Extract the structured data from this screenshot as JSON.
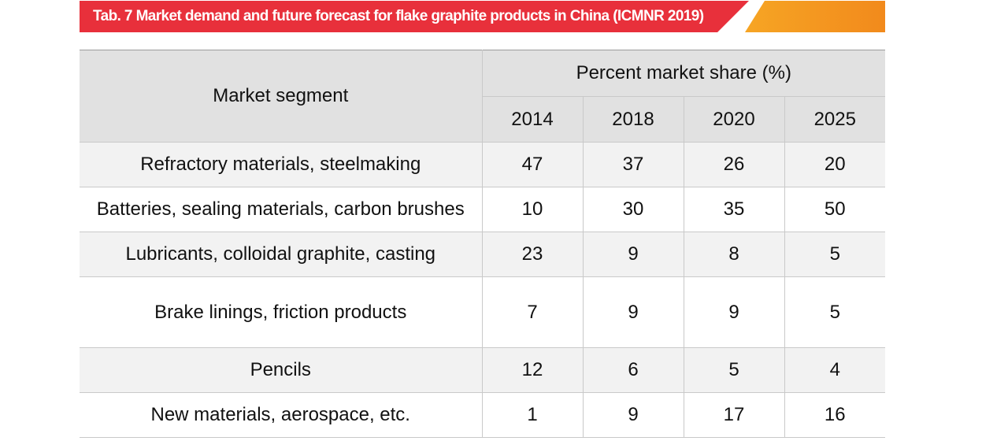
{
  "banner": {
    "title": "Tab. 7    Market demand and future forecast for flake graphite products in China (ICMNR 2019)"
  },
  "table": {
    "segment_header": "Market segment",
    "share_header": "Percent market share (%)",
    "years": [
      "2014",
      "2018",
      "2020",
      "2025"
    ],
    "rows": [
      {
        "segment": "Refractory materials, steelmaking",
        "values": [
          "47",
          "37",
          "26",
          "20"
        ]
      },
      {
        "segment": "Batteries, sealing materials, carbon brushes",
        "values": [
          "10",
          "30",
          "35",
          "50"
        ]
      },
      {
        "segment": "Lubricants, colloidal graphite, casting",
        "values": [
          "23",
          "9",
          "8",
          "5"
        ]
      },
      {
        "segment": "Brake linings, friction products",
        "values": [
          "7",
          "9",
          "9",
          "5"
        ]
      },
      {
        "segment": "Pencils",
        "values": [
          "12",
          "6",
          "5",
          "4"
        ]
      },
      {
        "segment": "New materials, aerospace, etc.",
        "values": [
          "1",
          "9",
          "17",
          "16"
        ]
      }
    ]
  },
  "colors": {
    "banner_red": "#e8303b",
    "banner_orange": "#f6a524",
    "header_fill": "#e1e1e1",
    "row_shade": "#f2f2f2"
  }
}
